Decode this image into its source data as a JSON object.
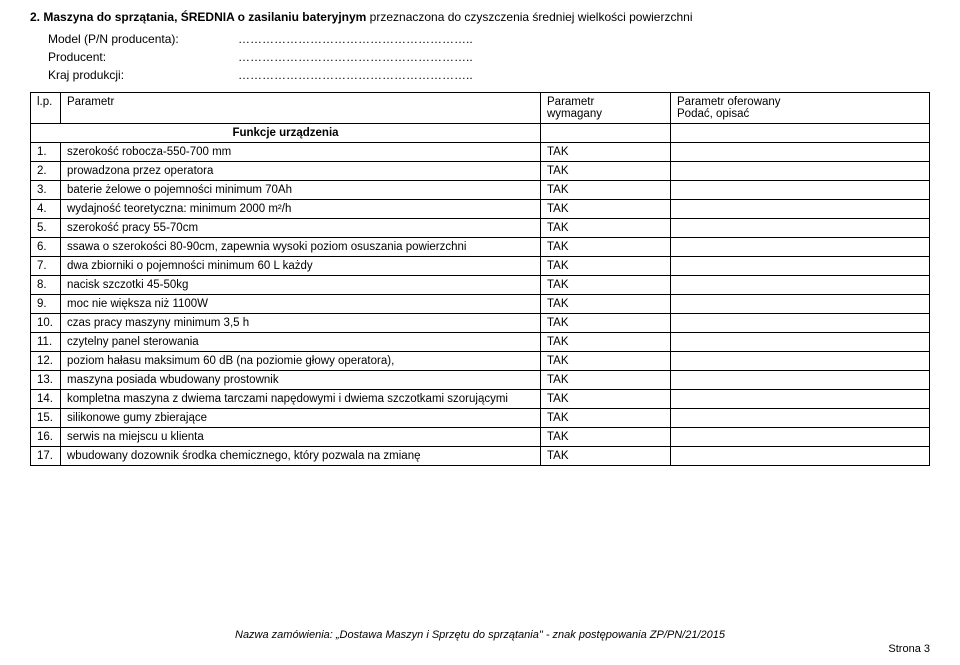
{
  "section": {
    "number": "2.",
    "title_bold": "Maszyna do sprzątania, ŚREDNIA o zasilaniu bateryjnym",
    "title_rest": " przeznaczona do czyszczenia średniej wielkości powierzchni"
  },
  "meta": {
    "model_label": "Model (P/N producenta):",
    "producent_label": "Producent:",
    "kraj_label": "Kraj produkcji:",
    "dots": "………………………………………………….."
  },
  "table": {
    "head": {
      "lp": "l.p.",
      "param": "Parametr",
      "req1": "Parametr",
      "req2": "wymagany",
      "off1": "Parametr oferowany",
      "off2": "Podać, opisać"
    },
    "funkcje": "Funkcje urządzenia",
    "rows": [
      {
        "n": "1.",
        "p": "szerokość robocza-550-700 mm",
        "r": "TAK"
      },
      {
        "n": "2.",
        "p": "prowadzona przez operatora",
        "r": "TAK"
      },
      {
        "n": "3.",
        "p": "baterie żelowe o pojemności minimum 70Ah",
        "r": "TAK"
      },
      {
        "n": "4.",
        "p": "wydajność teoretyczna: minimum 2000 m²/h",
        "r": "TAK"
      },
      {
        "n": "5.",
        "p": "szerokość pracy 55-70cm",
        "r": "TAK"
      },
      {
        "n": "6.",
        "p": "ssawa o szerokości 80-90cm, zapewnia wysoki poziom osuszania powierzchni",
        "r": "TAK"
      },
      {
        "n": "7.",
        "p": "dwa zbiorniki o pojemności minimum 60 L każdy",
        "r": "TAK"
      },
      {
        "n": "8.",
        "p": "nacisk szczotki 45-50kg",
        "r": "TAK"
      },
      {
        "n": "9.",
        "p": "moc nie większa niż 1100W",
        "r": "TAK"
      },
      {
        "n": "10.",
        "p": "czas pracy maszyny minimum 3,5 h",
        "r": "TAK"
      },
      {
        "n": "11.",
        "p": "czytelny panel sterowania",
        "r": "TAK"
      },
      {
        "n": "12.",
        "p": "poziom hałasu maksimum 60 dB (na poziomie głowy operatora),",
        "r": "TAK"
      },
      {
        "n": "13.",
        "p": "maszyna posiada wbudowany prostownik",
        "r": "TAK"
      },
      {
        "n": "14.",
        "p": "kompletna maszyna z dwiema tarczami napędowymi i dwiema szczotkami szorującymi",
        "r": "TAK"
      },
      {
        "n": "15.",
        "p": "silikonowe gumy zbierające",
        "r": "TAK"
      },
      {
        "n": "16.",
        "p": "serwis na miejscu u klienta",
        "r": "TAK"
      },
      {
        "n": "17.",
        "p": "wbudowany dozownik środka chemicznego, który pozwala na zmianę",
        "r": "TAK"
      }
    ]
  },
  "footer": {
    "text": "Nazwa zamówienia: „Dostawa Maszyn i Sprzętu do sprzątania\" - znak postępowania ZP/PN/21/2015",
    "page": "Strona 3"
  }
}
